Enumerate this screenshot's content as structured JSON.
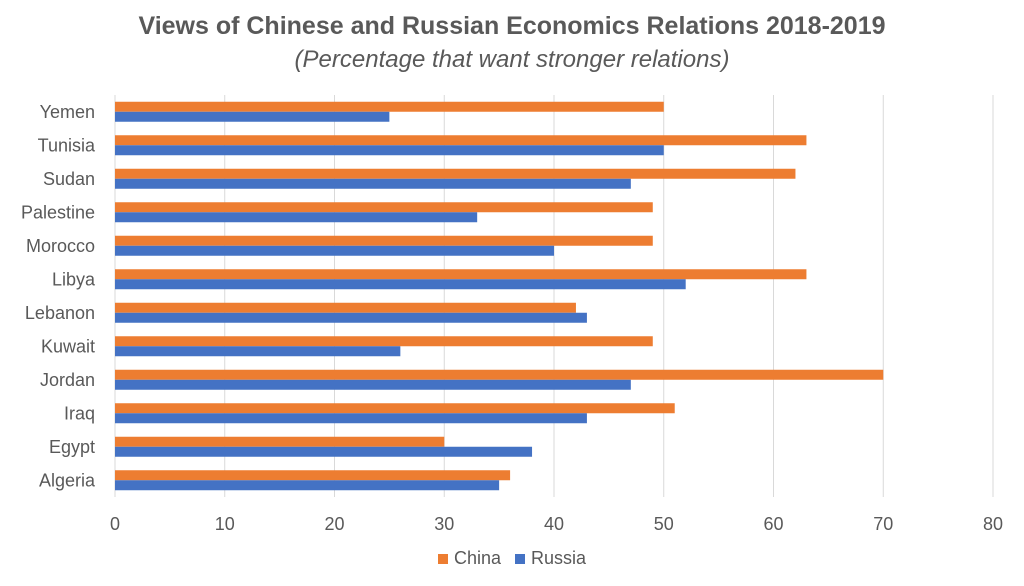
{
  "chart_data": {
    "type": "bar",
    "orientation": "horizontal",
    "title": "Views of Chinese and Russian Economics Relations 2018-2019",
    "subtitle": "(Percentage that want stronger relations)",
    "categories": [
      "Yemen",
      "Tunisia",
      "Sudan",
      "Palestine",
      "Morocco",
      "Libya",
      "Lebanon",
      "Kuwait",
      "Jordan",
      "Iraq",
      "Egypt",
      "Algeria"
    ],
    "series": [
      {
        "name": "China",
        "color": "#ED7D31",
        "values": [
          50,
          63,
          62,
          49,
          49,
          63,
          42,
          49,
          70,
          51,
          30,
          36
        ]
      },
      {
        "name": "Russia",
        "color": "#4472C4",
        "values": [
          25,
          50,
          47,
          33,
          40,
          52,
          43,
          26,
          47,
          43,
          38,
          35
        ]
      }
    ],
    "xlim": [
      0,
      80
    ],
    "xticks": [
      0,
      10,
      20,
      30,
      40,
      50,
      60,
      70,
      80
    ],
    "xlabel": "",
    "ylabel": "",
    "grid": "vertical",
    "legend_position": "bottom"
  }
}
